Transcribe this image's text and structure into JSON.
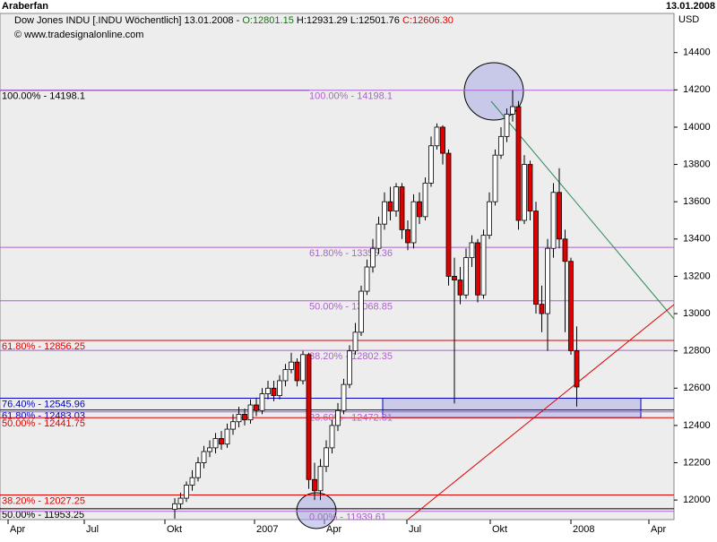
{
  "window": {
    "title": "Araberfan",
    "date": "13.01.2008"
  },
  "chart_data": {
    "type": "candlestick",
    "header": {
      "instrument": "Dow Jones INDU [.INDU  Wöchentlich] 13.01.2008 - ",
      "open": "O:12801.15",
      "high": "H:12931.29",
      "low": "L:12501.76",
      "close": "C:12606.30"
    },
    "copyright": "© www.tradesignalonline.com",
    "y_unit": "USD",
    "ylim": [
      11895,
      14610
    ],
    "yticks": [
      12000,
      12200,
      12400,
      12600,
      12800,
      13000,
      13200,
      13400,
      13600,
      13800,
      14000,
      14200,
      14400
    ],
    "x_labels": [
      "Apr",
      "Jul",
      "Okt",
      "2007",
      "Apr",
      "Jul",
      "Okt",
      "2008",
      "Apr"
    ],
    "up_color": "#ffffff",
    "down_color": "#e00000",
    "open": [
      11950,
      11980,
      12010,
      12080,
      12120,
      12200,
      12260,
      12280,
      12330,
      12300,
      12380,
      12420,
      12460,
      12430,
      12510,
      12480,
      12570,
      12600,
      12560,
      12640,
      12700,
      12740,
      12640,
      12780,
      12110,
      12050,
      12180,
      12280,
      12400,
      12480,
      12620,
      12800,
      12900,
      13120,
      13250,
      13350,
      13480,
      13600,
      13550,
      13680,
      13450,
      13380,
      13600,
      13520,
      13700,
      13900,
      14000,
      13860,
      13200,
      13180,
      13100,
      13300,
      13380,
      13100,
      13420,
      13600,
      13850,
      13950,
      14070,
      14110,
      13500,
      13800,
      13550,
      13050,
      13000,
      13350,
      13650,
      13400,
      13280,
      12801.15
    ],
    "high": [
      12010,
      12040,
      12100,
      12160,
      12230,
      12290,
      12320,
      12360,
      12370,
      12410,
      12460,
      12500,
      12490,
      12540,
      12550,
      12600,
      12640,
      12640,
      12670,
      12730,
      12790,
      12760,
      12800,
      12790,
      12200,
      12220,
      12320,
      12430,
      12520,
      12650,
      12830,
      12950,
      13150,
      13290,
      13400,
      13520,
      13650,
      13680,
      13700,
      13700,
      13500,
      13640,
      13650,
      13730,
      13950,
      14020,
      14010,
      13880,
      13300,
      13250,
      13350,
      13420,
      13400,
      13450,
      13650,
      13880,
      14000,
      14100,
      14198.1,
      14140,
      13850,
      13820,
      13600,
      13150,
      13400,
      13700,
      13780,
      13450,
      13300,
      12931.29
    ],
    "low": [
      11900,
      11950,
      11990,
      12050,
      12100,
      12170,
      12230,
      12250,
      12270,
      12280,
      12350,
      12390,
      12400,
      12410,
      12450,
      12460,
      12540,
      12530,
      12540,
      12610,
      12680,
      12610,
      12620,
      12060,
      12000,
      12000,
      12150,
      12250,
      12370,
      12460,
      12600,
      12780,
      12880,
      13100,
      13220,
      13320,
      13450,
      13500,
      13520,
      13400,
      13340,
      13350,
      13480,
      13500,
      13680,
      13880,
      13800,
      13150,
      12518,
      13050,
      13080,
      13250,
      13060,
      13080,
      13400,
      13580,
      13830,
      13920,
      14030,
      13450,
      13480,
      13500,
      13000,
      12900,
      12800,
      13300,
      13350,
      12900,
      12780,
      12501.76
    ],
    "close": [
      11980,
      12010,
      12080,
      12120,
      12200,
      12260,
      12280,
      12330,
      12300,
      12380,
      12420,
      12460,
      12430,
      12510,
      12480,
      12570,
      12600,
      12560,
      12640,
      12700,
      12740,
      12640,
      12780,
      12110,
      12050,
      12180,
      12280,
      12400,
      12480,
      12620,
      12800,
      12900,
      13120,
      13250,
      13350,
      13480,
      13600,
      13550,
      13680,
      13450,
      13380,
      13600,
      13520,
      13700,
      13900,
      14000,
      13860,
      13200,
      13180,
      13100,
      13300,
      13380,
      13100,
      13420,
      13600,
      13850,
      13950,
      14070,
      14110,
      13500,
      13800,
      13550,
      13050,
      13000,
      13350,
      13650,
      13400,
      13280,
      12801.15,
      12606.3
    ],
    "levels": [
      {
        "label": "100.00% - 14198.1",
        "value": 14198.1,
        "color": "#000000",
        "side": "left"
      },
      {
        "label": "61.80% - 12856.25",
        "value": 12856.25,
        "color": "#e00000",
        "side": "left"
      },
      {
        "label": "76.40% - 12545.96",
        "value": 12545.96,
        "color": "#0000c0",
        "side": "left"
      },
      {
        "label": "61.80% - 12483.03",
        "value": 12483.03,
        "color": "#0000c0",
        "side": "left"
      },
      {
        "label": "50.00% - 12441.75",
        "value": 12441.75,
        "color": "#e00000",
        "side": "left"
      },
      {
        "label": "38.20% - 12027.25",
        "value": 12027.25,
        "color": "#e00000",
        "side": "left"
      },
      {
        "label": "50.00% - 11953.25",
        "value": 11953.25,
        "color": "#000000",
        "side": "left"
      },
      {
        "label": "100.00% - 14198.1",
        "value": 14198.1,
        "color": "#b060d0",
        "side": "mid"
      },
      {
        "label": "61.80% - 13355.36",
        "value": 13355.36,
        "color": "#b060d0",
        "side": "mid"
      },
      {
        "label": "50.00% - 13068.85",
        "value": 13068.85,
        "color": "#b060d0",
        "side": "mid"
      },
      {
        "label": "38.20% - 12802.35",
        "value": 12802.35,
        "color": "#b060d0",
        "side": "mid"
      },
      {
        "label": "23.60% - 12472.81",
        "value": 12472.81,
        "color": "#b060d0",
        "side": "mid"
      },
      {
        "label": "0.00% - 11939.61",
        "value": 11939.61,
        "color": "#b060d0",
        "side": "mid"
      }
    ]
  }
}
